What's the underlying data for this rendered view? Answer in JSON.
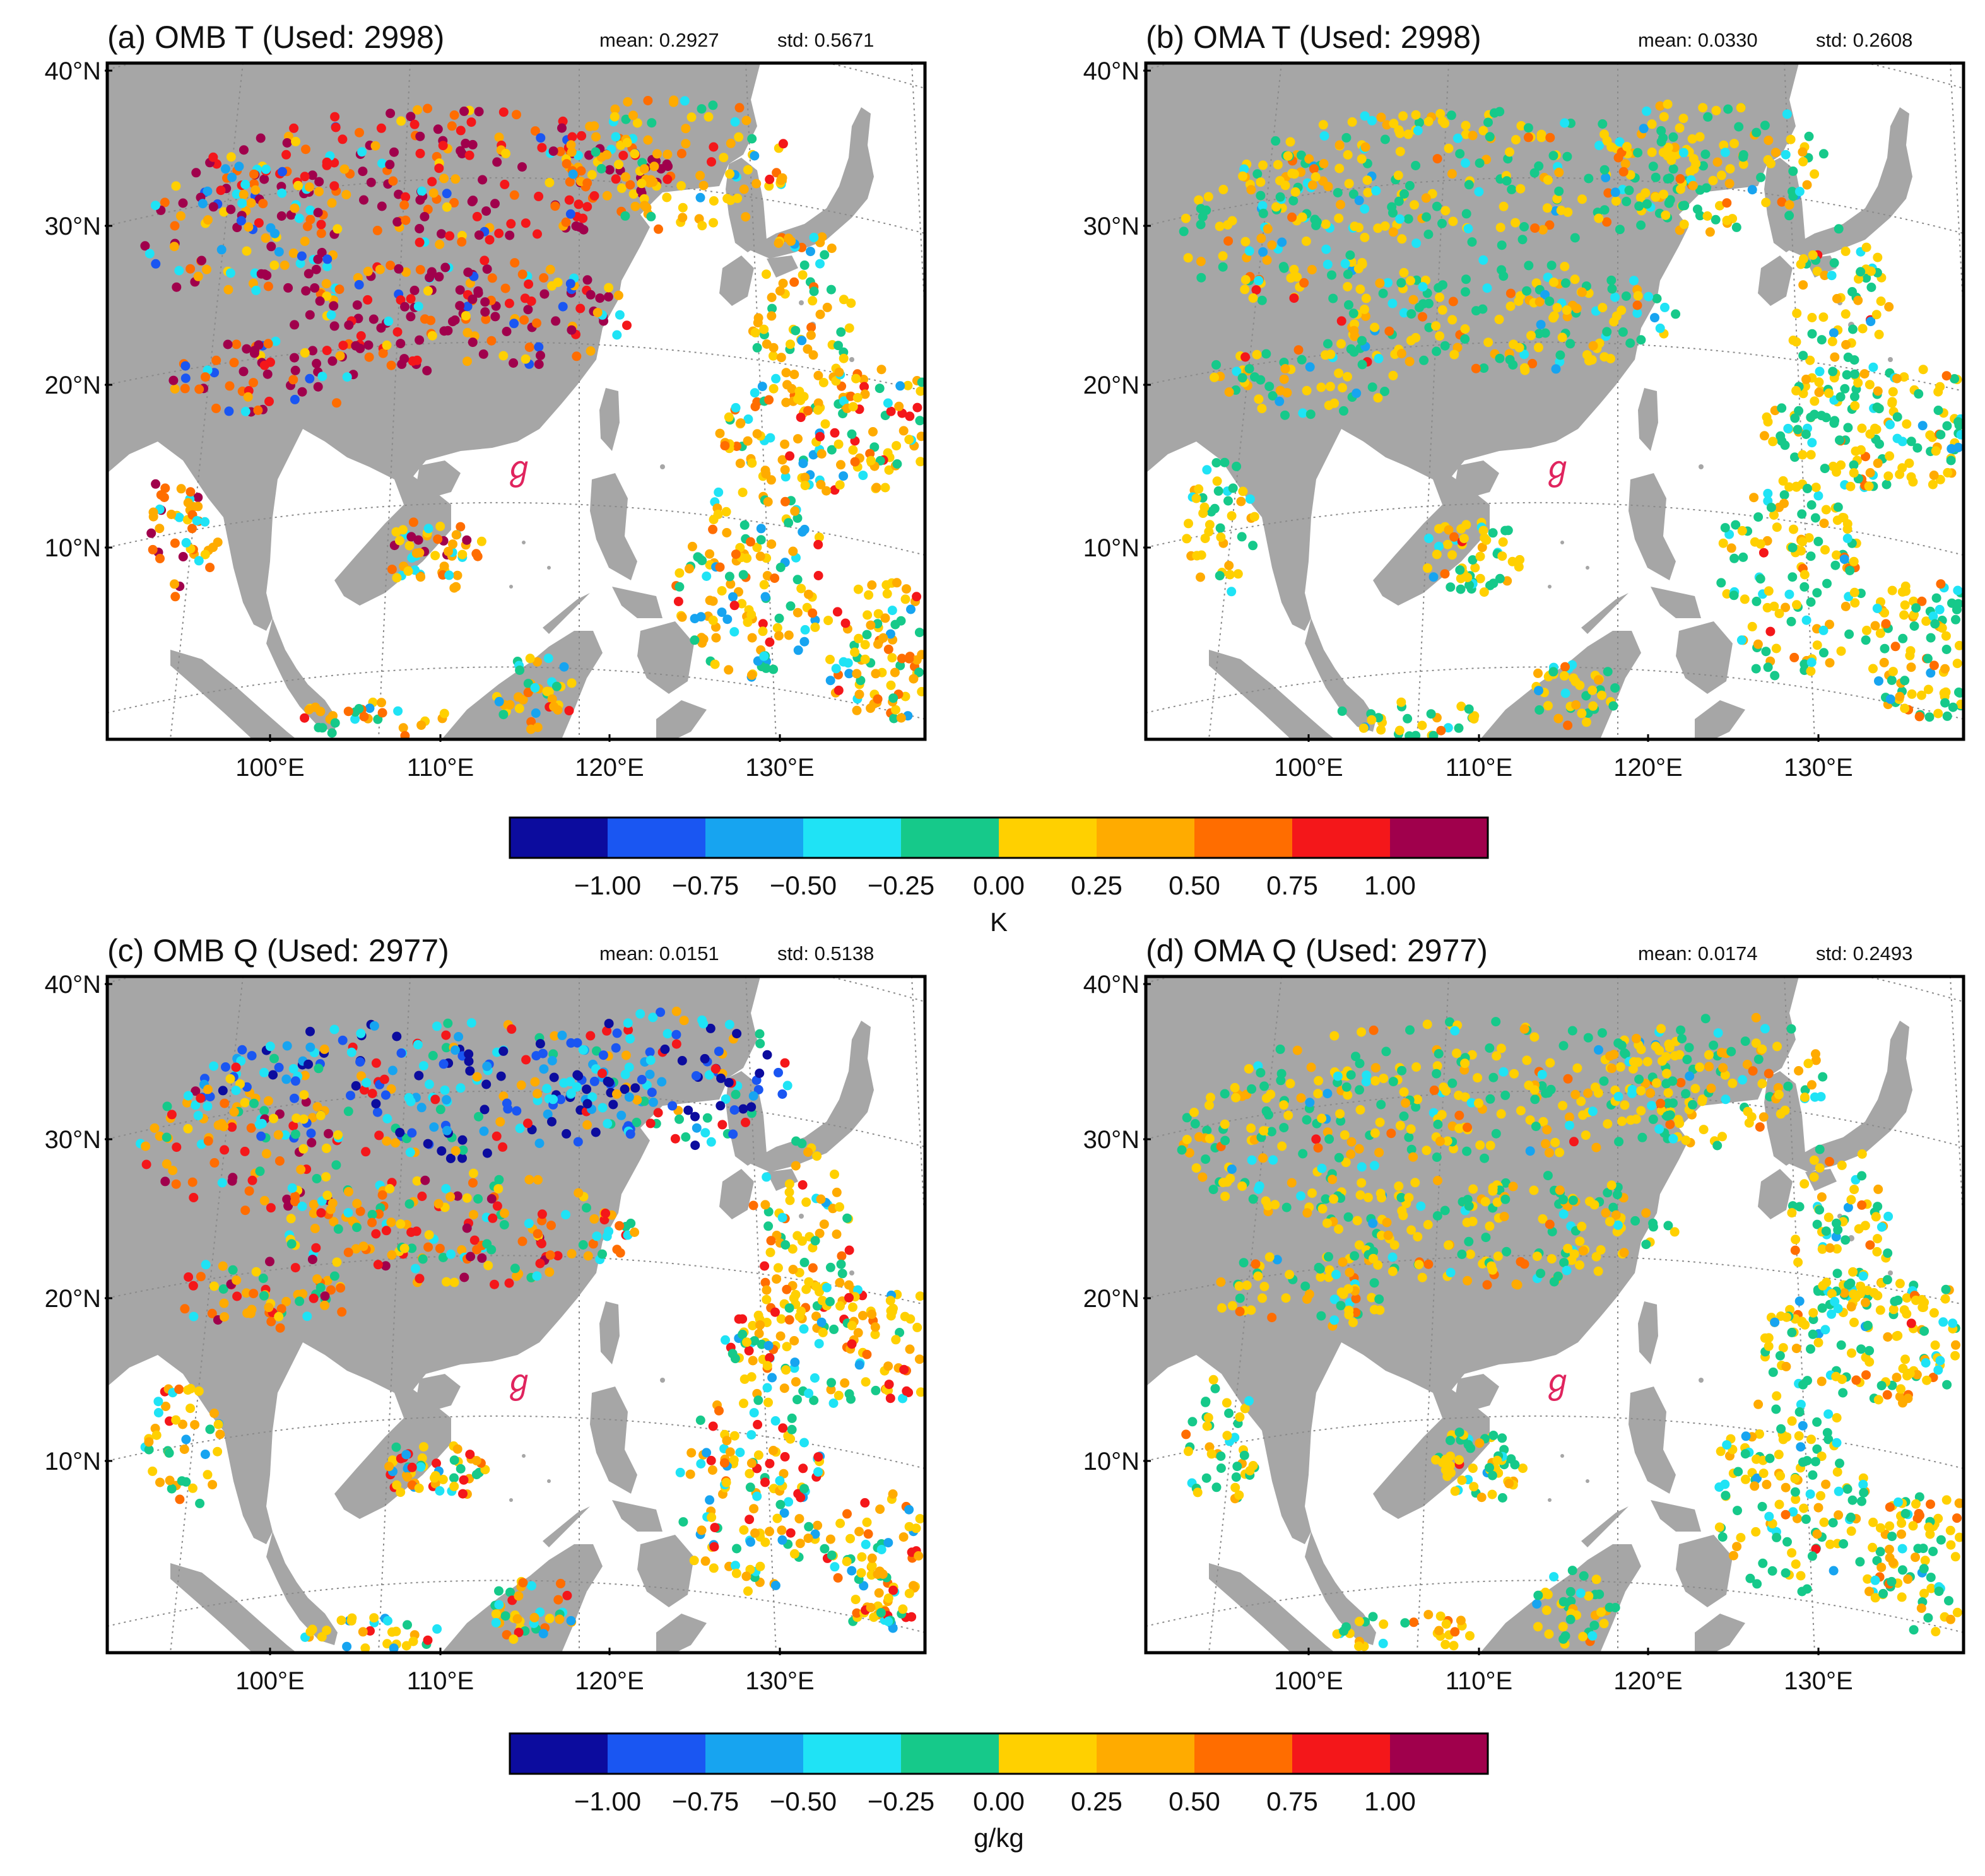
{
  "figure": {
    "lat_ticks": [
      "40°N",
      "30°N",
      "20°N",
      "10°N"
    ],
    "lon_ticks": [
      "100°E",
      "110°E",
      "120°E",
      "130°E"
    ],
    "typhoon_symbol": "ℊ",
    "palette": [
      "#0c0c9e",
      "#1a56f2",
      "#17a4f0",
      "#1fe3f5",
      "#16c98a",
      "#ffd000",
      "#ffab00",
      "#ff6d00",
      "#f4171a",
      "#a0004c"
    ],
    "land_color": "#a6a6a6",
    "grid_color": "#8a8a8a",
    "typhoon_color": "#e0245e"
  },
  "panels": [
    {
      "label": "(a)",
      "title": "(a) OMB T (Used: 2998)",
      "mean": "mean: 0.2927",
      "std": "std: 0.5671"
    },
    {
      "label": "(b)",
      "title": "(b) OMA T (Used: 2998)",
      "mean": "mean: 0.0330",
      "std": "std: 0.2608"
    },
    {
      "label": "(c)",
      "title": "(c) OMB Q (Used: 2977)",
      "mean": "mean: 0.0151",
      "std": "std: 0.5138"
    },
    {
      "label": "(d)",
      "title": "(d) OMA Q (Used: 2977)",
      "mean": "mean: 0.0174",
      "std": "std: 0.2493"
    }
  ],
  "colorbars": [
    {
      "ticks": [
        "−1.00",
        "−0.75",
        "−0.50",
        "−0.25",
        "0.00",
        "0.25",
        "0.50",
        "0.75",
        "1.00"
      ],
      "unit": "K"
    },
    {
      "ticks": [
        "−1.00",
        "−0.75",
        "−0.50",
        "−0.25",
        "0.00",
        "0.25",
        "0.50",
        "0.75",
        "1.00"
      ],
      "unit": "g/kg"
    }
  ],
  "chart_data": [
    {
      "type": "scatter",
      "panel": "a",
      "title": "(a) OMB T (Used: 2998)",
      "variable": "T",
      "kind": "OMB",
      "units": "K",
      "used_obs": 2998,
      "mean": 0.2927,
      "std": 0.5671,
      "lon_range": [
        93,
        138
      ],
      "lat_range": [
        0,
        40
      ],
      "class_bounds": [
        -1.0,
        -0.75,
        -0.5,
        -0.25,
        0.0,
        0.25,
        0.5,
        0.75,
        1.0
      ],
      "predominant_classes": "warm (0.25 to >1.00) over land; mixed/negative west; positive ocean",
      "bias": "positive"
    },
    {
      "type": "scatter",
      "panel": "b",
      "title": "(b) OMA T (Used: 2998)",
      "variable": "T",
      "kind": "OMA",
      "units": "K",
      "used_obs": 2998,
      "mean": 0.033,
      "std": 0.2608,
      "lon_range": [
        93,
        138
      ],
      "lat_range": [
        0,
        40
      ],
      "class_bounds": [
        -1.0,
        -0.75,
        -0.5,
        -0.25,
        0.0,
        0.25,
        0.5,
        0.75,
        1.0
      ],
      "predominant_classes": "-0.25 to 0.25 nearly everywhere",
      "bias": "near zero"
    },
    {
      "type": "scatter",
      "panel": "c",
      "title": "(c) OMB Q (Used: 2977)",
      "variable": "Q",
      "kind": "OMB",
      "units": "g/kg",
      "used_obs": 2977,
      "mean": 0.0151,
      "std": 0.5138,
      "lon_range": [
        93,
        138
      ],
      "lat_range": [
        0,
        40
      ],
      "class_bounds": [
        -1.0,
        -0.75,
        -0.5,
        -0.25,
        0.0,
        0.25,
        0.5,
        0.75,
        1.0
      ],
      "predominant_classes": "negative north China, positive south China and ocean",
      "bias": "mixed"
    },
    {
      "type": "scatter",
      "panel": "d",
      "title": "(d) OMA Q (Used: 2977)",
      "variable": "Q",
      "kind": "OMA",
      "units": "g/kg",
      "used_obs": 2977,
      "mean": 0.0174,
      "std": 0.2493,
      "lon_range": [
        93,
        138
      ],
      "lat_range": [
        0,
        40
      ],
      "class_bounds": [
        -1.0,
        -0.75,
        -0.5,
        -0.25,
        0.0,
        0.25,
        0.5,
        0.75,
        1.0
      ],
      "predominant_classes": "-0.25 to 0.25 nearly everywhere",
      "bias": "near zero"
    }
  ]
}
